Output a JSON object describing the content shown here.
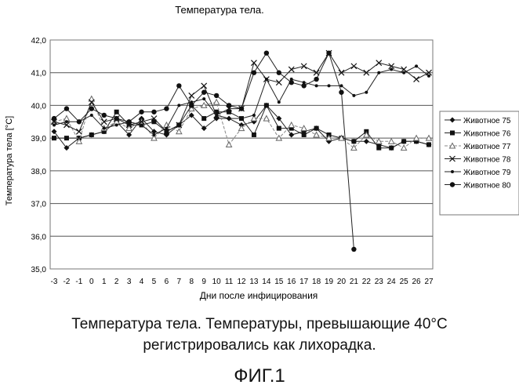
{
  "chart_data": {
    "type": "line",
    "title": "Температура тела.",
    "xlabel": "Дни после инфицирования",
    "ylabel": "Температура тела   [°C]",
    "ylim": [
      35.0,
      42.0
    ],
    "y_ticks": [
      "35,0",
      "36,0",
      "37,0",
      "38,0",
      "39,0",
      "40,0",
      "41,0",
      "42,0"
    ],
    "y_tick_values": [
      35,
      36,
      37,
      38,
      39,
      40,
      41,
      42
    ],
    "x": [
      -3,
      -2,
      -1,
      0,
      1,
      2,
      3,
      4,
      5,
      6,
      7,
      8,
      9,
      10,
      11,
      12,
      13,
      14,
      15,
      16,
      17,
      18,
      19,
      20,
      21,
      22,
      23,
      24,
      25,
      26,
      27
    ],
    "grid": "horizontal",
    "legend_position": "right",
    "series": [
      {
        "name": "Животное 75",
        "marker": "diamond",
        "line": "solid",
        "values": [
          39.2,
          38.7,
          39.0,
          39.1,
          39.2,
          39.5,
          39.1,
          39.6,
          39.2,
          39.1,
          39.4,
          39.7,
          39.3,
          39.6,
          39.6,
          39.4,
          39.5,
          40.0,
          39.6,
          39.1,
          39.2,
          39.3,
          38.9,
          39.0,
          38.9,
          38.9,
          38.8,
          38.7,
          38.9,
          38.9,
          38.8
        ]
      },
      {
        "name": "Животное 76",
        "marker": "square",
        "line": "solid",
        "values": [
          39.0,
          39.0,
          39.0,
          39.1,
          39.2,
          39.8,
          39.4,
          39.4,
          39.5,
          39.2,
          39.4,
          40.0,
          39.6,
          39.8,
          39.8,
          39.6,
          39.1,
          40.0,
          39.3,
          39.3,
          39.1,
          39.3,
          39.1,
          39.0,
          38.9,
          39.2,
          38.7,
          38.7,
          38.9,
          38.9,
          38.8
        ]
      },
      {
        "name": "Животное 77",
        "marker": "triangle",
        "line": "dashed",
        "values": [
          39.5,
          39.6,
          38.9,
          40.2,
          39.3,
          39.5,
          39.3,
          39.5,
          39.0,
          39.4,
          39.2,
          39.9,
          40.0,
          40.1,
          38.8,
          39.3,
          39.6,
          39.6,
          39.0,
          39.4,
          39.3,
          39.1,
          39.0,
          39.0,
          38.7,
          39.1,
          38.9,
          38.9,
          38.7,
          39.0,
          39.0
        ]
      },
      {
        "name": "Животное 78",
        "marker": "x",
        "line": "solid",
        "values": [
          39.5,
          39.4,
          39.2,
          40.1,
          39.5,
          39.6,
          39.4,
          39.5,
          39.6,
          39.2,
          39.4,
          40.3,
          40.6,
          39.7,
          39.9,
          39.9,
          41.3,
          40.8,
          40.7,
          41.1,
          41.2,
          41.0,
          41.6,
          41.0,
          41.2,
          41.0,
          41.3,
          41.2,
          41.1,
          40.8,
          41.0
        ]
      },
      {
        "name": "Животное 79",
        "marker": "dot",
        "line": "solid",
        "values": [
          39.4,
          39.5,
          39.5,
          39.7,
          39.3,
          39.4,
          39.5,
          39.4,
          39.1,
          39.3,
          40.0,
          40.1,
          40.2,
          39.7,
          39.6,
          39.6,
          39.7,
          40.8,
          40.1,
          40.8,
          40.7,
          40.6,
          40.6,
          40.6,
          40.3,
          40.4,
          41.0,
          41.1,
          41.0,
          41.2,
          40.9
        ]
      },
      {
        "name": "Животное 80",
        "marker": "circle",
        "line": "solid",
        "values": [
          39.6,
          39.9,
          39.5,
          39.9,
          39.7,
          39.6,
          39.5,
          39.8,
          39.8,
          39.9,
          40.6,
          40.0,
          40.4,
          40.3,
          40.0,
          39.9,
          41.0,
          41.6,
          41.0,
          40.7,
          40.6,
          40.8,
          41.6,
          40.4,
          35.6,
          null,
          null,
          null,
          null,
          null,
          null
        ]
      }
    ]
  },
  "caption": {
    "line1": "Температура тела. Температуры, превышающие 40°C",
    "line2": "регистрировались как лихорадка."
  },
  "figure_label": "ФИГ.1"
}
